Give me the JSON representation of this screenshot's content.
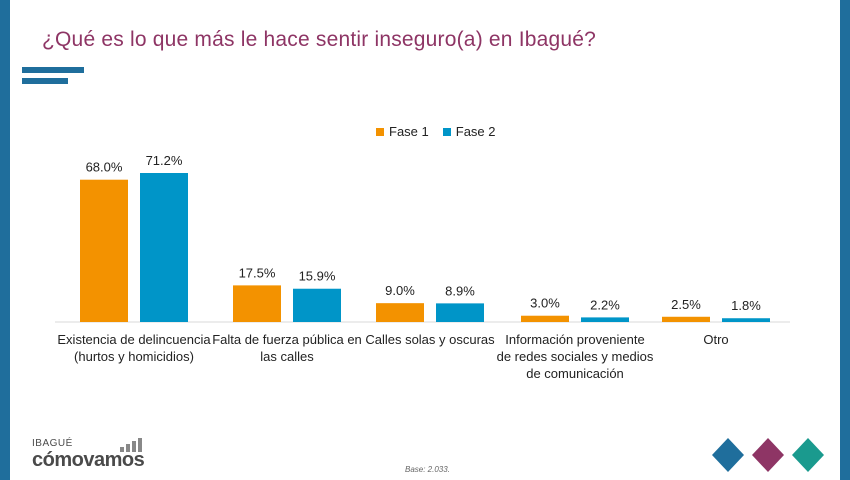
{
  "title": "¿Qué es lo que más le hace sentir inseguro(a) en Ibagué?",
  "chart_data": {
    "type": "bar",
    "categories": [
      [
        "Existencia de delincuencia",
        "(hurtos y homicidios)"
      ],
      [
        "Falta de fuerza pública en",
        "las calles"
      ],
      [
        "Calles solas y oscuras"
      ],
      [
        "Información proveniente",
        "de redes sociales y medios",
        "de comunicación"
      ],
      [
        "Otro"
      ]
    ],
    "series": [
      {
        "name": "Fase 1",
        "color": "#f39200",
        "values": [
          68.0,
          17.5,
          9.0,
          3.0,
          2.5
        ],
        "labels": [
          "68.0%",
          "17.5%",
          "9.0%",
          "3.0%",
          "2.5%"
        ]
      },
      {
        "name": "Fase 2",
        "color": "#0095c8",
        "values": [
          71.2,
          15.9,
          8.9,
          2.2,
          1.8
        ],
        "labels": [
          "71.2%",
          "15.9%",
          "8.9%",
          "2.2%",
          "1.8%"
        ]
      }
    ],
    "legend_position": "top",
    "grid": false
  },
  "legend": {
    "fase1": "Fase 1",
    "fase2": "Fase 2",
    "fase1_color": "#f39200",
    "fase2_color": "#0095c8"
  },
  "logo": {
    "top": "IBAGUÉ",
    "main": "cómovamos"
  },
  "base_note": "Base: 2.033."
}
